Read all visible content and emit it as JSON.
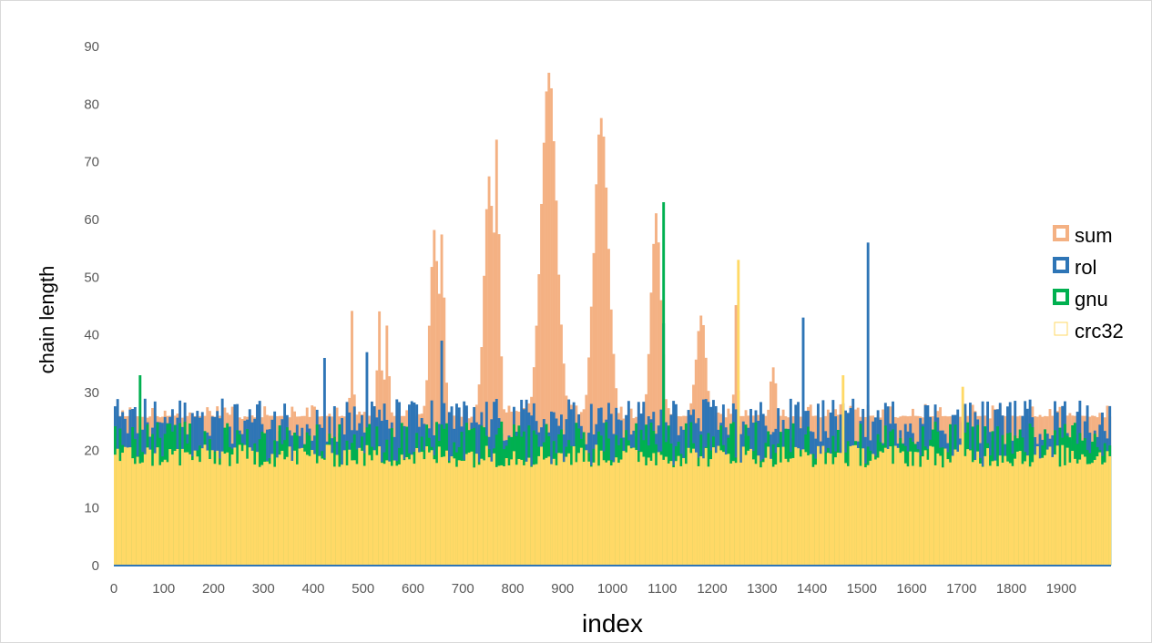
{
  "chart_data": {
    "type": "bar",
    "title": "",
    "xlabel": "index",
    "ylabel": "chain length",
    "xlim": [
      0,
      2000
    ],
    "ylim": [
      0,
      90
    ],
    "x_ticks": [
      "0",
      "100",
      "200",
      "300",
      "400",
      "500",
      "600",
      "700",
      "800",
      "900",
      "1000",
      "1100",
      "1200",
      "1300",
      "1400",
      "1500",
      "1600",
      "1700",
      "1800",
      "1900"
    ],
    "y_ticks": [
      "0",
      "10",
      "20",
      "30",
      "40",
      "50",
      "60",
      "70",
      "80",
      "90"
    ],
    "grid": false,
    "legend_position": "right",
    "bin_width": 5,
    "series": [
      {
        "name": "sum",
        "color": "#F4B183",
        "fill": "solid",
        "baseline": 25,
        "noise": 3,
        "peaks": [
          {
            "x": 475,
            "y": 44,
            "w": 4
          },
          {
            "x": 530,
            "y": 44,
            "w": 6
          },
          {
            "x": 545,
            "y": 41,
            "w": 6
          },
          {
            "x": 640,
            "y": 58,
            "w": 12
          },
          {
            "x": 655,
            "y": 57,
            "w": 8
          },
          {
            "x": 750,
            "y": 67,
            "w": 14
          },
          {
            "x": 765,
            "y": 74,
            "w": 8
          },
          {
            "x": 870,
            "y": 85,
            "w": 22
          },
          {
            "x": 975,
            "y": 77,
            "w": 20
          },
          {
            "x": 1085,
            "y": 61,
            "w": 14
          },
          {
            "x": 1175,
            "y": 43,
            "w": 14
          },
          {
            "x": 1245,
            "y": 46,
            "w": 4
          },
          {
            "x": 1320,
            "y": 35,
            "w": 8
          }
        ]
      },
      {
        "name": "rol",
        "color": "#2E75B6",
        "fill": "solid",
        "baseline": 25,
        "noise": 4,
        "spikes": [
          {
            "x": 420,
            "y": 36
          },
          {
            "x": 505,
            "y": 37
          },
          {
            "x": 655,
            "y": 39
          },
          {
            "x": 1100,
            "y": 42
          },
          {
            "x": 1380,
            "y": 43
          },
          {
            "x": 1510,
            "y": 56
          }
        ]
      },
      {
        "name": "gnu",
        "color": "#00B050",
        "fill": "solid",
        "baseline": 21,
        "noise": 4,
        "spikes": [
          {
            "x": 50,
            "y": 33
          },
          {
            "x": 1100,
            "y": 63
          }
        ]
      },
      {
        "name": "crc32",
        "color": "#FFD966",
        "fill": "solid",
        "baseline": 19,
        "noise": 2,
        "spikes": [
          {
            "x": 1250,
            "y": 53
          },
          {
            "x": 1460,
            "y": 33
          },
          {
            "x": 1700,
            "y": 31
          }
        ]
      }
    ]
  },
  "legend": {
    "items": [
      {
        "label": "sum",
        "color": "#F4B183"
      },
      {
        "label": "rol",
        "color": "#2E75B6"
      },
      {
        "label": "gnu",
        "color": "#00B050"
      },
      {
        "label": "crc32",
        "color": "#FFD966"
      }
    ]
  }
}
